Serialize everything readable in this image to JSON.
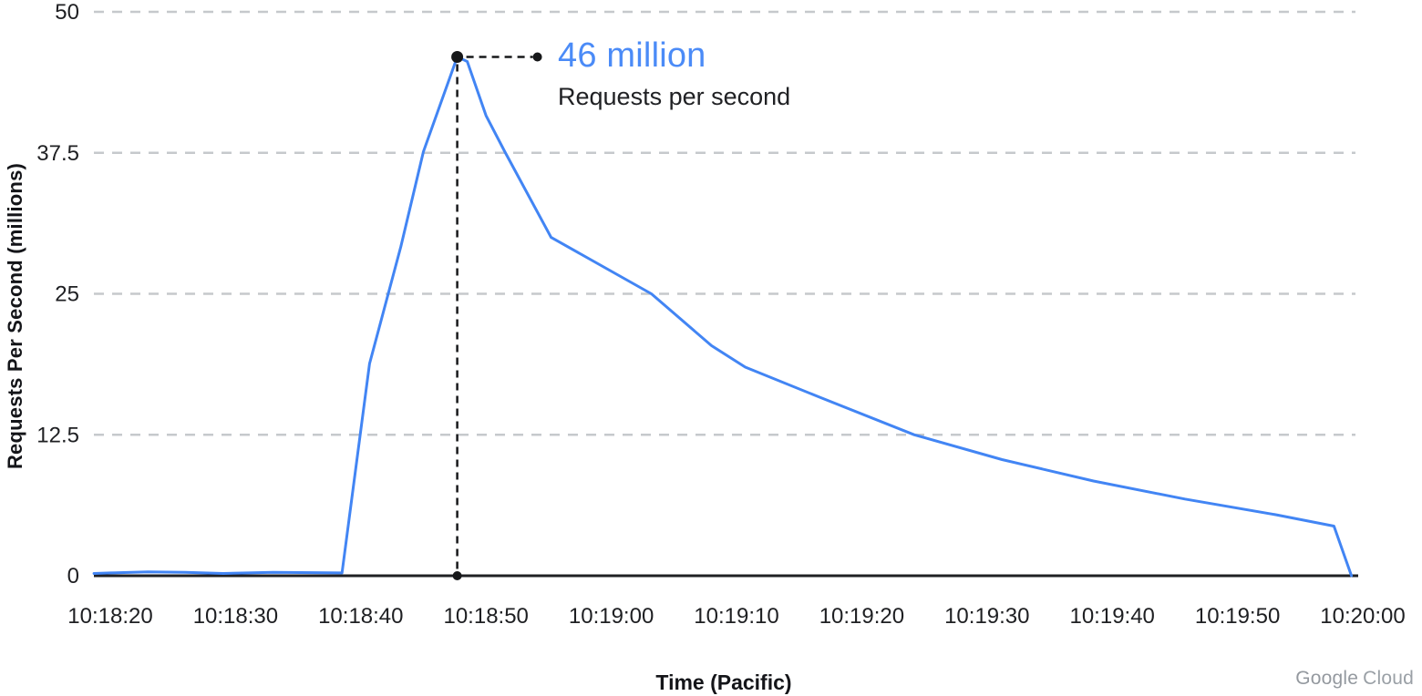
{
  "page": {
    "background": "#ffffff"
  },
  "annotation": {
    "value_label": "46 million",
    "sub_label": "Requests per second",
    "value_color": "#4b8bf7",
    "sub_color": "#202124"
  },
  "watermark": {
    "text_primary": "Google",
    "text_secondary": "Cloud",
    "color": "#9aa0a6"
  },
  "chart_data": {
    "type": "line",
    "title": "",
    "xlabel": "Time (Pacific)",
    "ylabel": "Requests Per Second (millions)",
    "unit": "millions of requests per second",
    "legend": "none",
    "grid": "horizontal dashed gridlines at y ticks (none at 0)",
    "ylim": [
      0,
      50
    ],
    "xlim_seconds_after_first_tick": [
      0,
      100
    ],
    "line_color": "#4285f4",
    "grid_color": "#c6c9cc",
    "axis_color": "#1f2023",
    "tick_color": "#1e1f22",
    "annotation_color": "#17181a",
    "y_ticks": [
      {
        "v": 0,
        "label": "0"
      },
      {
        "v": 12.5,
        "label": "12.5"
      },
      {
        "v": 25,
        "label": "25"
      },
      {
        "v": 37.5,
        "label": "37.5"
      },
      {
        "v": 50,
        "label": "50"
      }
    ],
    "x_ticks": [
      {
        "t": 0,
        "label": "10:18:20"
      },
      {
        "t": 10,
        "label": "10:18:30"
      },
      {
        "t": 20,
        "label": "10:18:40"
      },
      {
        "t": 30,
        "label": "10:18:50"
      },
      {
        "t": 40,
        "label": "10:19:00"
      },
      {
        "t": 50,
        "label": "10:19:10"
      },
      {
        "t": 60,
        "label": "10:19:20"
      },
      {
        "t": 70,
        "label": "10:19:30"
      },
      {
        "t": 80,
        "label": "10:19:40"
      },
      {
        "t": 90,
        "label": "10:19:50"
      },
      {
        "t": 100,
        "label": "10:20:00"
      }
    ],
    "series": [
      {
        "name": "Requests per second",
        "points_t_seconds_v_millions": [
          [
            -1.3,
            0.2
          ],
          [
            0,
            0.25
          ],
          [
            3,
            0.35
          ],
          [
            6,
            0.3
          ],
          [
            9,
            0.2
          ],
          [
            13,
            0.3
          ],
          [
            18.5,
            0.25
          ],
          [
            20.7,
            18.8
          ],
          [
            23.2,
            29.2
          ],
          [
            25.0,
            37.6
          ],
          [
            27.7,
            46
          ],
          [
            28.5,
            45.6
          ],
          [
            30,
            40.8
          ],
          [
            31.5,
            37.6
          ],
          [
            35.2,
            30.0
          ],
          [
            43.2,
            25.0
          ],
          [
            48,
            20.4
          ],
          [
            50.7,
            18.5
          ],
          [
            56.7,
            15.8
          ],
          [
            64.2,
            12.5
          ],
          [
            71.2,
            10.3
          ],
          [
            78.5,
            8.4
          ],
          [
            85.8,
            6.8
          ],
          [
            93.1,
            5.4
          ],
          [
            97.7,
            4.4
          ],
          [
            99.1,
            0
          ]
        ]
      }
    ],
    "peak": {
      "t": 27.7,
      "value": 46,
      "approx_time": "10:18:47",
      "label": "46 million",
      "sublabel": "Requests per second"
    }
  }
}
